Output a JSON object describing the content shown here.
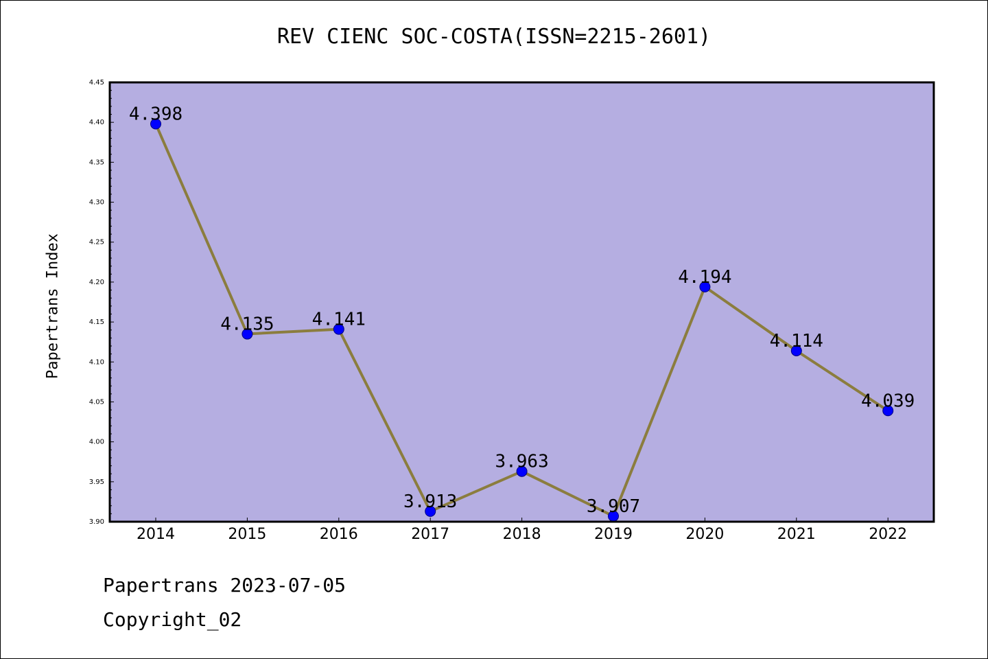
{
  "chart_data": {
    "type": "line",
    "title": "REV CIENC SOC-COSTA(ISSN=2215-2601)",
    "ylabel": "Papertrans Index",
    "xlabel": "",
    "categories": [
      "2014",
      "2015",
      "2016",
      "2017",
      "2018",
      "2019",
      "2020",
      "2021",
      "2022"
    ],
    "values": [
      4.398,
      4.135,
      4.141,
      3.913,
      3.963,
      3.907,
      4.194,
      4.114,
      4.039
    ],
    "data_labels": [
      "4.398",
      "4.135",
      "4.141",
      "3.913",
      "3.963",
      "3.907",
      "4.194",
      "4.114",
      "4.039"
    ],
    "ylim": [
      3.9,
      4.45
    ],
    "yticks": [
      "3.90",
      "3.95",
      "4.00",
      "4.05",
      "4.10",
      "4.15",
      "4.20",
      "4.25",
      "4.30",
      "4.35",
      "4.40",
      "4.45"
    ],
    "grid": false,
    "legend": "none",
    "colors": {
      "plot_background": "#b5aee1",
      "line": "#8b7d3e",
      "marker_fill": "#0000ff",
      "marker_edge": "#000080"
    }
  },
  "footer": {
    "line1": "Papertrans 2023-07-05",
    "line2": "Copyright_02"
  }
}
